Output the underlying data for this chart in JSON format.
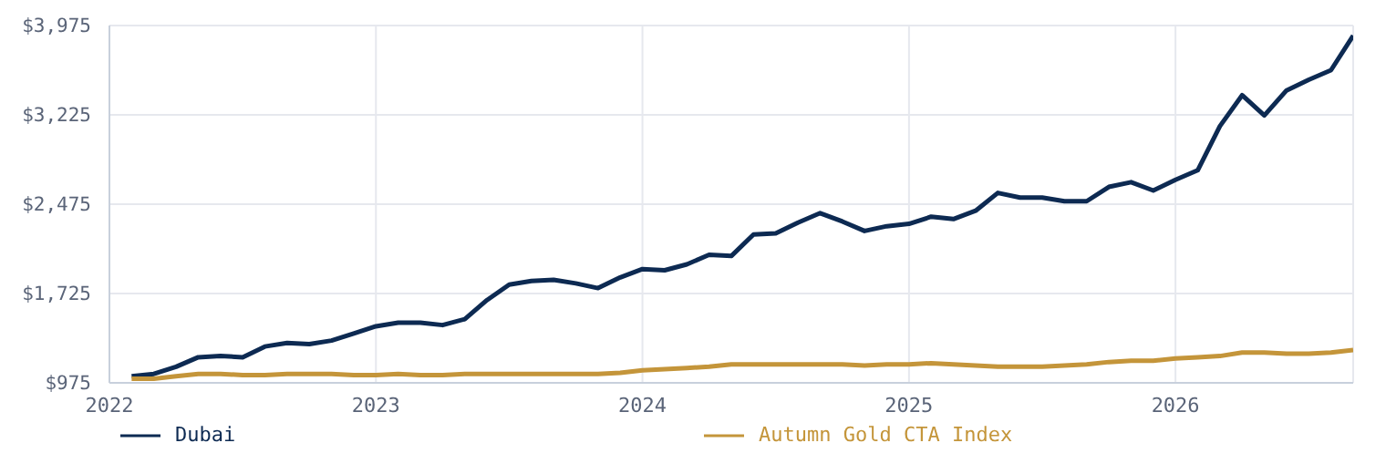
{
  "chart_data": {
    "type": "line",
    "x": [
      "2022-02",
      "2022-03",
      "2022-04",
      "2022-05",
      "2022-06",
      "2022-07",
      "2022-08",
      "2022-09",
      "2022-10",
      "2022-11",
      "2022-12",
      "2023-01",
      "2023-02",
      "2023-03",
      "2023-04",
      "2023-05",
      "2023-06",
      "2023-07",
      "2023-08",
      "2023-09",
      "2023-10",
      "2023-11",
      "2023-12",
      "2024-01",
      "2024-02",
      "2024-03",
      "2024-04",
      "2024-05",
      "2024-06",
      "2024-07",
      "2024-08",
      "2024-09",
      "2024-10",
      "2024-11",
      "2024-12",
      "2025-01",
      "2025-02",
      "2025-03",
      "2025-04",
      "2025-05",
      "2025-06",
      "2025-07",
      "2025-08",
      "2025-09",
      "2025-10",
      "2025-11",
      "2025-12",
      "2026-01",
      "2026-02",
      "2026-03",
      "2026-04",
      "2026-05",
      "2026-06",
      "2026-07",
      "2026-08",
      "2026-09"
    ],
    "series": [
      {
        "name": "Dubai",
        "color": "#0d2a52",
        "values": [
          1030,
          1050,
          1110,
          1190,
          1200,
          1190,
          1280,
          1310,
          1300,
          1330,
          1390,
          1450,
          1480,
          1480,
          1460,
          1510,
          1670,
          1800,
          1830,
          1840,
          1810,
          1770,
          1860,
          1930,
          1920,
          1970,
          2050,
          2040,
          2220,
          2230,
          2320,
          2400,
          2330,
          2250,
          2290,
          2310,
          2370,
          2350,
          2420,
          2570,
          2530,
          2530,
          2500,
          2500,
          2620,
          2660,
          2590,
          2680,
          2760,
          3130,
          3390,
          3220,
          3430,
          3520,
          3600,
          3890
        ]
      },
      {
        "name": "Autumn Gold CTA Index",
        "color": "#c4953a",
        "values": [
          1010,
          1010,
          1030,
          1050,
          1050,
          1040,
          1040,
          1050,
          1050,
          1050,
          1040,
          1040,
          1050,
          1040,
          1040,
          1050,
          1050,
          1050,
          1050,
          1050,
          1050,
          1050,
          1060,
          1080,
          1090,
          1100,
          1110,
          1130,
          1130,
          1130,
          1130,
          1130,
          1130,
          1120,
          1130,
          1130,
          1140,
          1130,
          1120,
          1110,
          1110,
          1110,
          1120,
          1130,
          1150,
          1160,
          1160,
          1180,
          1190,
          1200,
          1230,
          1230,
          1220,
          1220,
          1230,
          1250
        ]
      }
    ],
    "xlim": [
      "2022",
      "2026-09"
    ],
    "xticks": [
      "2022",
      "2023",
      "2024",
      "2025",
      "2026"
    ],
    "ylim": [
      975,
      3975
    ],
    "yticks": [
      {
        "value": 975,
        "label": "$975"
      },
      {
        "value": 1725,
        "label": "$1,725"
      },
      {
        "value": 2475,
        "label": "$2,475"
      },
      {
        "value": 3225,
        "label": "$3,225"
      },
      {
        "value": 3975,
        "label": "$3,975"
      }
    ],
    "grid": true,
    "legend": "bottom",
    "marker": "none",
    "line_style": "solid"
  }
}
